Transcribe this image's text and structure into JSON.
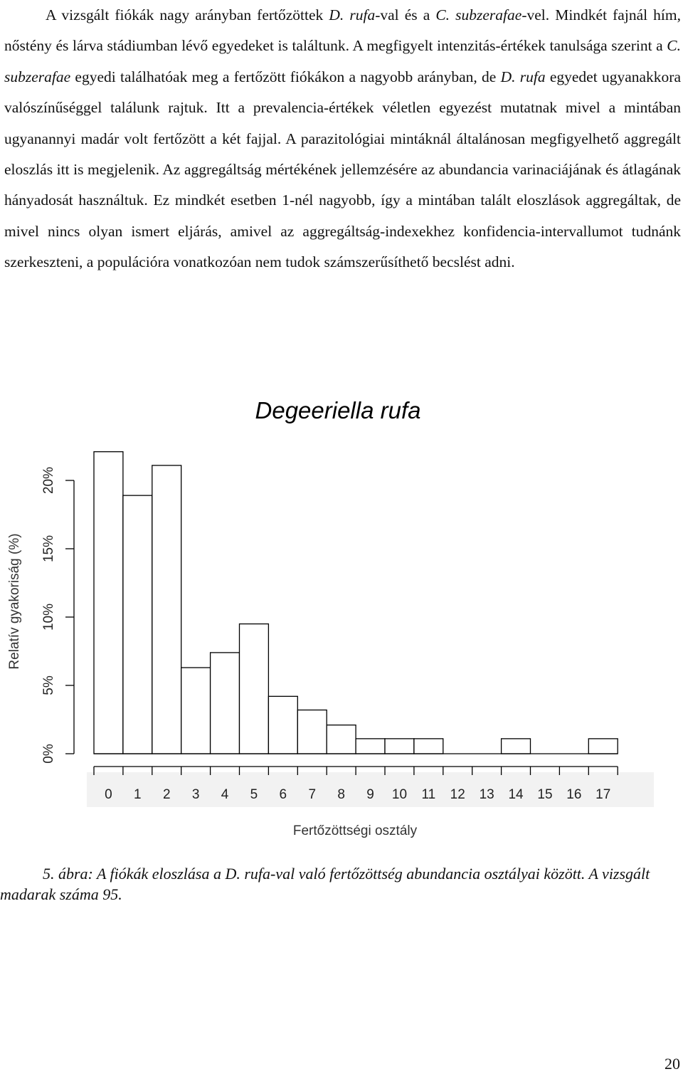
{
  "paragraph": {
    "p1": "A vizsgált fiókák nagy arányban fertőzöttek ",
    "p2": "D. rufa",
    "p3": "-val és a ",
    "p4": "C. subzerafae",
    "p5": "-vel. Mindkét fajnál hím, nőstény és lárva stádiumban lévő egyedeket is találtunk. A megfigyelt intenzitás-értékek tanulsága szerint a ",
    "p6": "C. subzerafae",
    "p7": " egyedi találhatóak meg a fertőzött fiókákon a nagyobb arányban, de ",
    "p8": "D. rufa",
    "p9": " egyedet ugyanakkora valószínűséggel találunk rajtuk. Itt a prevalencia-értékek véletlen egyezést mutatnak mivel a mintában ugyanannyi madár volt fertőzött a két fajjal. A parazitológiai mintáknál általánosan megfigyelhető aggregált eloszlás itt is megjelenik. Az aggregáltság mértékének jellemzésére az abundancia varinaciájának és átlagának hányadosát használtuk. Ez mindkét esetben 1-nél nagyobb, így a mintában talált eloszlások aggregáltak, de mivel nincs olyan ismert eljárás, amivel az aggregáltság-indexekhez konfidencia-intervallumot tudnánk szerkeszteni, a populációra vonatkozóan nem tudok számszerűsíthető becslést adni."
  },
  "chart_data": {
    "type": "bar",
    "title": "Degeeriella rufa",
    "xlabel": "Fertőzöttségi osztály",
    "ylabel": "Relatív gyakoriság (%)",
    "categories": [
      "0",
      "1",
      "2",
      "3",
      "4",
      "5",
      "6",
      "7",
      "8",
      "9",
      "10",
      "11",
      "12",
      "13",
      "14",
      "15",
      "16",
      "17"
    ],
    "values": [
      22.1,
      18.9,
      21.1,
      6.3,
      7.4,
      9.5,
      4.2,
      3.2,
      2.1,
      1.1,
      1.1,
      1.1,
      0,
      0,
      1.1,
      0,
      0,
      1.1
    ],
    "yticks": [
      "0%",
      "5%",
      "10%",
      "15%",
      "20%"
    ],
    "ylim": [
      0,
      22.5
    ],
    "grid": false
  },
  "caption": {
    "line": "5. ábra: A fiókák eloszlása a D. rufa-val való fertőzöttség abundancia osztályai között. A vizsgált madarak száma 95."
  },
  "page_number": "20"
}
